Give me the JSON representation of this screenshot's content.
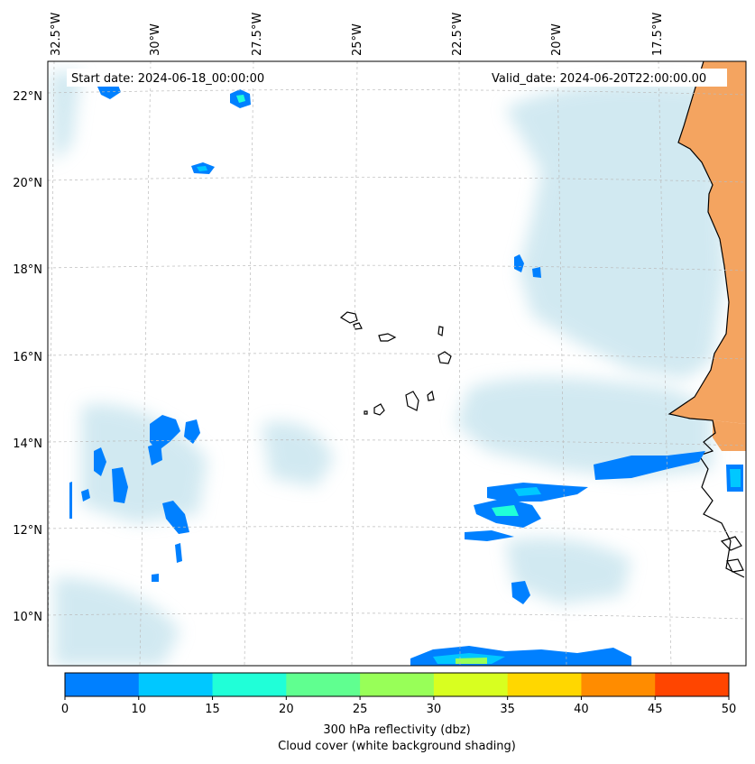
{
  "map": {
    "start_date": "Start date: 2024-06-18_00:00:00",
    "valid_date": "Valid_date: 2024-06-20T22:00:00.00",
    "lon_labels": [
      "32.5°W",
      "30°W",
      "27.5°W",
      "25°W",
      "22.5°W",
      "20°W",
      "17.5°W"
    ],
    "lat_labels": [
      "22°N",
      "20°N",
      "18°N",
      "16°N",
      "14°N",
      "12°N",
      "10°N"
    ],
    "land_color": "#f4a460",
    "cloud_color": "#add8e6"
  },
  "colorbar": {
    "ticks": [
      "0",
      "10",
      "15",
      "20",
      "25",
      "30",
      "35",
      "40",
      "45",
      "50"
    ],
    "colors": [
      "#0080ff",
      "#00c8ff",
      "#20ffd8",
      "#60ff90",
      "#98ff58",
      "#d8ff20",
      "#ffd700",
      "#ff8c00",
      "#ff4500"
    ],
    "label_line1": "300 hPa reflectivity (dbz)",
    "label_line2": "Cloud cover (white background shading)"
  }
}
